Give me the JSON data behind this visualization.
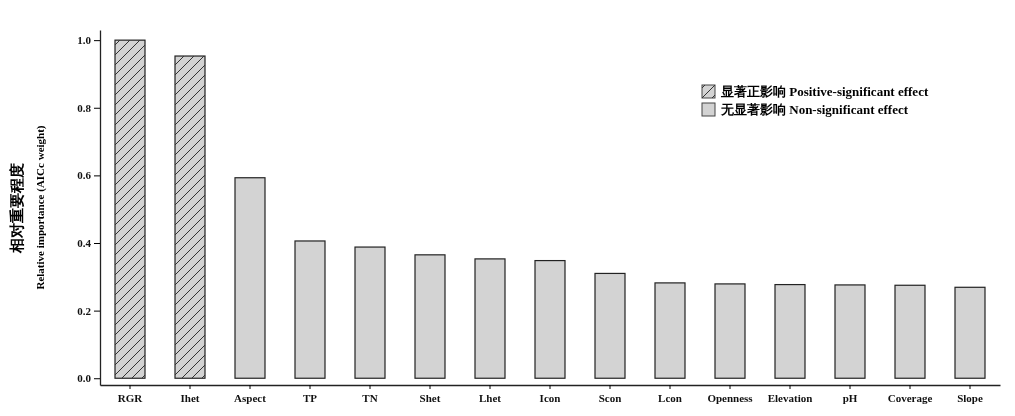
{
  "chart_data": {
    "type": "bar",
    "ylabel": "相对重要程度\nRelative importance (AICc weight)",
    "categories": [
      "RGR",
      "Ihet",
      "Aspect",
      "TP",
      "TN",
      "Shet",
      "Lhet",
      "Icon",
      "Scon",
      "Lcon",
      "Openness",
      "Elevation",
      "pH",
      "Coverage",
      "Slope"
    ],
    "series": [
      {
        "name": "显著正影响 Positive-significant effect",
        "color": "#d3d3d3",
        "values": [
          1.0,
          0.953,
          null,
          null,
          null,
          null,
          null,
          null,
          null,
          null,
          null,
          null,
          null,
          null,
          null
        ]
      },
      {
        "name": "无显著影响 Non-significant effect",
        "color": "#d3d3d3",
        "values": [
          null,
          null,
          0.593,
          0.406,
          0.388,
          0.365,
          0.353,
          0.348,
          0.31,
          0.282,
          0.279,
          0.277,
          0.276,
          0.275,
          0.269
        ]
      }
    ],
    "ylim": [
      -0.02,
      1.03
    ],
    "yticks": [
      {
        "value": 0,
        "label": "0.0"
      },
      0.2,
      0.4,
      0.6,
      0.8,
      {
        "value": 1,
        "label": "1.0"
      }
    ],
    "grid": false,
    "legend": "top right"
  }
}
